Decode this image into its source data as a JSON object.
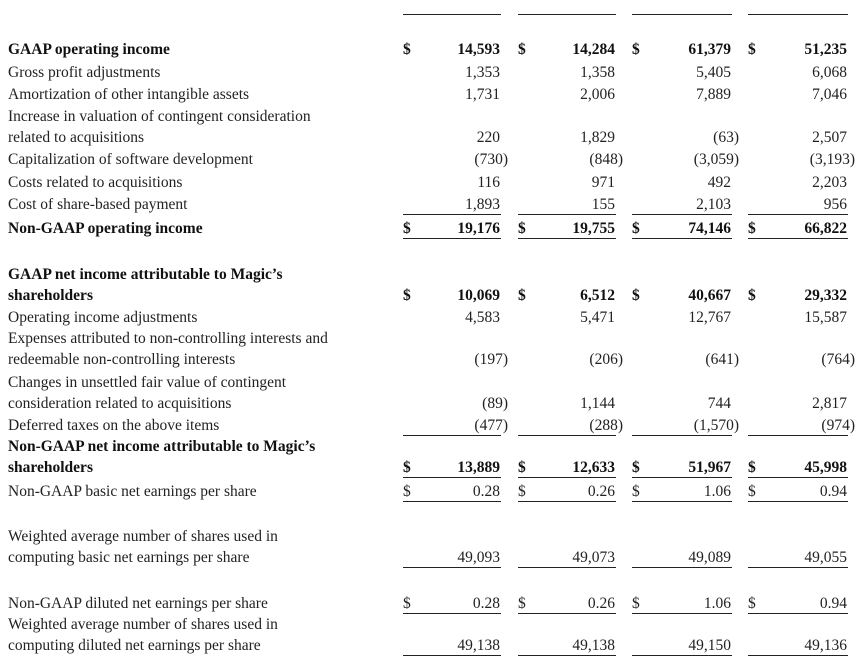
{
  "rows": [
    {
      "label": [
        "GAAP operating income"
      ],
      "bold": true,
      "dollar": true,
      "values": [
        "14,593",
        "14,284",
        "61,379",
        "51,235"
      ]
    },
    {
      "label": [
        "Gross profit adjustments"
      ],
      "values": [
        "1,353",
        "1,358",
        "5,405",
        "6,068"
      ]
    },
    {
      "label": [
        "Amortization of other intangible assets"
      ],
      "values": [
        "1,731",
        "2,006",
        "7,889",
        "7,046"
      ]
    },
    {
      "label": [
        "Increase in valuation of contingent consideration",
        "related to acquisitions"
      ],
      "values": [
        "220",
        "1,829",
        "(63)",
        "2,507"
      ]
    },
    {
      "label": [
        "Capitalization of software development"
      ],
      "values": [
        "(730)",
        "(848)",
        "(3,059)",
        "(3,193)"
      ]
    },
    {
      "label": [
        "Costs related to acquisitions"
      ],
      "values": [
        "116",
        "971",
        "492",
        "2,203"
      ]
    },
    {
      "label": [
        "Cost of share-based payment"
      ],
      "values": [
        "1,893",
        "155",
        "2,103",
        "956"
      ]
    },
    {
      "label": [
        "Non-GAAP operating income"
      ],
      "bold": true,
      "dollar": true,
      "values": [
        "19,176",
        "19,755",
        "74,146",
        "66,822"
      ]
    },
    {
      "label": [
        "GAAP net income attributable to Magic’s",
        "shareholders"
      ],
      "bold": true,
      "dollar": true,
      "values": [
        "10,069",
        "6,512",
        "40,667",
        "29,332"
      ]
    },
    {
      "label": [
        "Operating income adjustments"
      ],
      "values": [
        "4,583",
        "5,471",
        "12,767",
        "15,587"
      ]
    },
    {
      "label": [
        "Expenses attributed to non-controlling interests and",
        "redeemable non-controlling interests"
      ],
      "values": [
        "(197)",
        "(206)",
        "(641)",
        "(764)"
      ]
    },
    {
      "label": [
        "Changes in unsettled fair value of contingent",
        "consideration related to acquisitions"
      ],
      "values": [
        "(89)",
        "1,144",
        "744",
        "2,817"
      ]
    },
    {
      "label": [
        "Deferred taxes on the above items"
      ],
      "values": [
        "(477)",
        "(288)",
        "(1,570)",
        "(974)"
      ]
    },
    {
      "label": [
        "Non-GAAP net income attributable to Magic’s",
        "shareholders"
      ],
      "bold": true,
      "dollar": true,
      "values": [
        "13,889",
        "12,633",
        "51,967",
        "45,998"
      ]
    },
    {
      "label": [
        "Non-GAAP basic net earnings per share"
      ],
      "dollar": true,
      "values": [
        "0.28",
        "0.26",
        "1.06",
        "0.94"
      ]
    },
    {
      "label": [
        "Weighted average number of shares used in",
        "computing basic net earnings per share"
      ],
      "values": [
        "49,093",
        "49,073",
        "49,089",
        "49,055"
      ]
    },
    {
      "label": [
        "Non-GAAP diluted net earnings per share"
      ],
      "dollar": true,
      "values": [
        "0.28",
        "0.26",
        "1.06",
        "0.94"
      ]
    },
    {
      "label": [
        "Weighted average number of shares used in",
        "computing diluted net earnings per share"
      ],
      "values": [
        "49,138",
        "49,138",
        "49,150",
        "49,136"
      ]
    }
  ],
  "currency_symbol": "$"
}
